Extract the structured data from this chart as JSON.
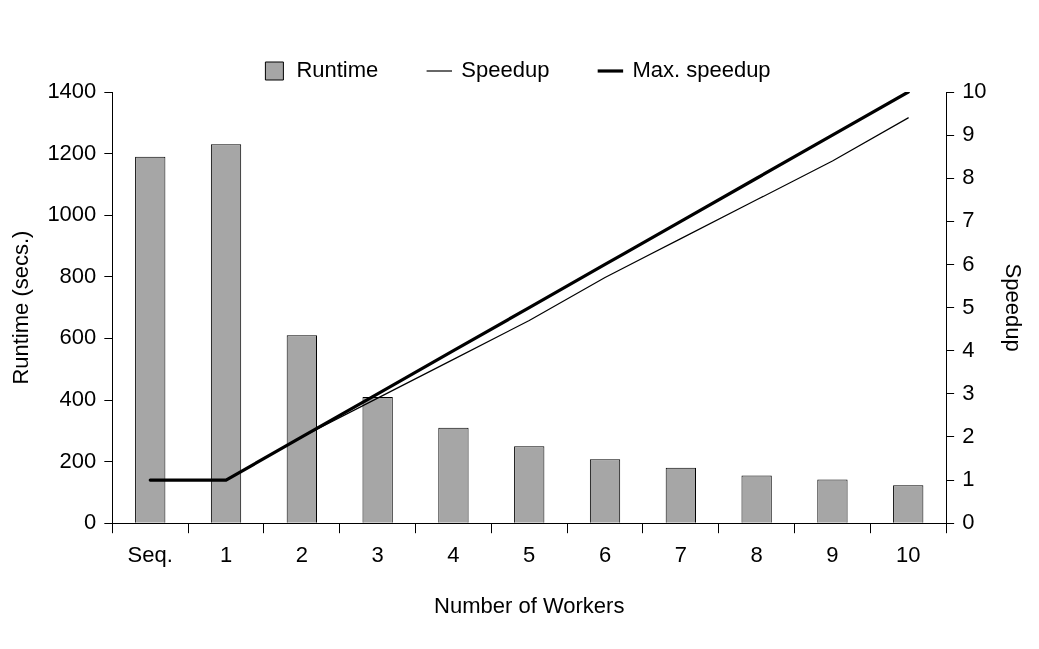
{
  "chart_data": {
    "type": "bar",
    "xlabel": "Number of Workers",
    "ylabel": "Runtime (secs.)",
    "y2label": "Speedup",
    "categories": [
      "Seq.",
      "1",
      "2",
      "3",
      "4",
      "5",
      "6",
      "7",
      "8",
      "9",
      "10"
    ],
    "series": [
      {
        "name": "Runtime",
        "color": "#a6a6a6",
        "values": [
          1190,
          1230,
          610,
          410,
          310,
          250,
          208,
          180,
          155,
          142,
          123
        ]
      },
      {
        "name": "Speedup",
        "type": "line",
        "axis": "y2",
        "color": "#000000",
        "values": [
          1,
          1,
          2,
          2.9,
          3.8,
          4.7,
          5.7,
          6.6,
          7.5,
          8.4,
          9.4
        ]
      },
      {
        "name": "Max. speedup",
        "type": "line",
        "axis": "y2",
        "color": "#000000",
        "values": [
          1,
          1,
          2,
          3,
          4,
          5,
          6,
          7,
          8,
          9,
          10
        ]
      }
    ],
    "ylim": [
      0,
      1400
    ],
    "yticks": [
      0,
      200,
      400,
      600,
      800,
      1000,
      1200,
      1400
    ],
    "y2lim": [
      0,
      10
    ],
    "y2ticks": [
      0,
      1,
      2,
      3,
      4,
      5,
      6,
      7,
      8,
      9,
      10
    ],
    "legend": "top",
    "grid": false,
    "marker": "none",
    "line_style": "solid"
  }
}
